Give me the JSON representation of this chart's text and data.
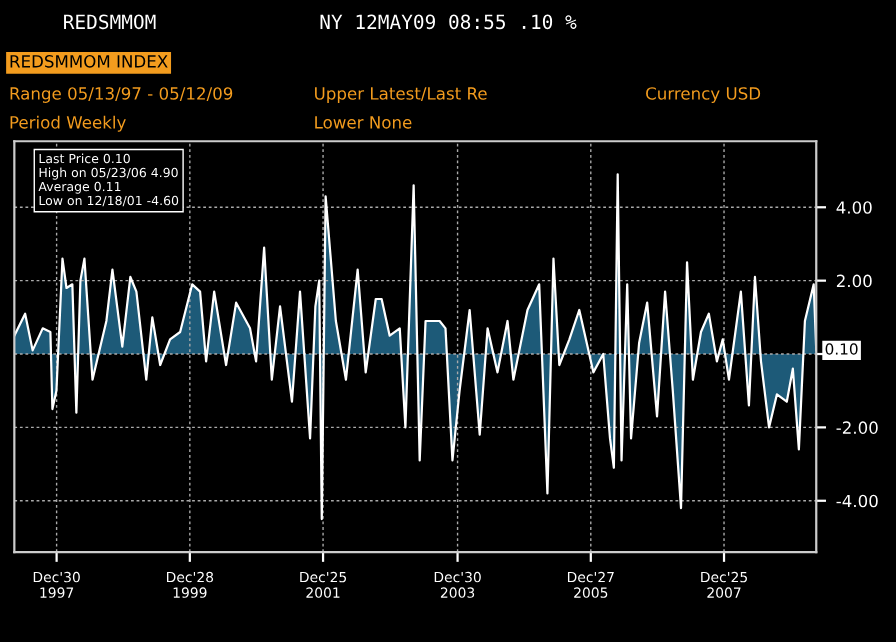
{
  "chart_data": {
    "type": "area",
    "title": "REDSMMOM",
    "subtitle": "NY 12MAY09 08:55 .10 %",
    "annotations": [
      "Last Price 0.10",
      "High on 05/23/06 4.90",
      "Average 0.11",
      "Low on 12/18/01 -4.60",
      "REDSMMOM INDEX",
      "Range 05/13/97 - 05/12/09",
      "Period Weekly",
      "Upper Latest/Last Re",
      "Lower None",
      "Currency USD",
      {
        "text": "0.10",
        "x": "2009-05-12",
        "y": 0.1
      }
    ],
    "x": [
      "1997-05-13",
      "1997-07-11",
      "1997-08-21",
      "1997-10-15",
      "1997-11-26",
      "1997-12-07",
      "1997-12-29",
      "1998-01-31",
      "1998-02-22",
      "1998-03-26",
      "1998-04-17",
      "1998-05-09",
      "1998-05-31",
      "1998-07-14",
      "1998-09-28",
      "1998-10-31",
      "1998-12-24",
      "1999-02-06",
      "1999-03-11",
      "1999-05-04",
      "1999-06-06",
      "1999-07-19",
      "1999-09-11",
      "1999-11-05",
      "2000-01-10",
      "2000-02-22",
      "2000-03-26",
      "2000-05-09",
      "2000-07-13",
      "2000-09-06",
      "2000-11-21",
      "2000-12-24",
      "2001-02-06",
      "2001-03-20",
      "2001-05-04",
      "2001-07-08",
      "2001-08-21",
      "2001-10-15",
      "2001-11-13",
      "2001-12-04",
      "2001-12-18",
      "2002-01-08",
      "2002-03-05",
      "2002-04-29",
      "2002-07-02",
      "2002-08-15",
      "2002-10-09",
      "2002-11-10",
      "2002-12-24",
      "2003-02-17",
      "2003-03-20",
      "2003-05-04",
      "2003-06-06",
      "2003-07-08",
      "2003-09-23",
      "2003-10-25",
      "2003-12-02",
      "2004-01-10",
      "2004-03-05",
      "2004-04-29",
      "2004-06-11",
      "2004-08-04",
      "2004-09-28",
      "2004-10-30",
      "2005-01-15",
      "2005-03-20",
      "2005-05-04",
      "2005-06-06",
      "2005-07-08",
      "2005-09-01",
      "2005-10-25",
      "2006-01-10",
      "2006-03-05",
      "2006-04-11",
      "2006-05-02",
      "2006-05-23",
      "2006-06-13",
      "2006-07-14",
      "2006-08-04",
      "2006-09-17",
      "2006-10-31",
      "2006-12-24",
      "2007-02-06",
      "2007-03-20",
      "2007-05-04",
      "2007-06-06",
      "2007-07-08",
      "2007-08-21",
      "2007-10-03",
      "2007-11-16",
      "2007-12-18",
      "2008-01-21",
      "2008-03-26",
      "2008-05-09",
      "2008-06-11",
      "2008-07-14",
      "2008-08-27",
      "2008-10-09",
      "2008-12-02",
      "2009-01-04",
      "2009-02-06",
      "2009-03-11",
      "2009-04-28",
      "2009-05-12"
    ],
    "series": [
      {
        "color": "#1d5a78",
        "values": [
          0.5,
          1.1,
          0.1,
          0.7,
          0.6,
          -1.5,
          -1.0,
          2.6,
          1.8,
          1.9,
          -1.6,
          2.0,
          2.6,
          -0.7,
          0.9,
          2.3,
          0.2,
          2.1,
          1.7,
          -0.7,
          1.0,
          -0.3,
          0.4,
          0.6,
          1.9,
          1.7,
          -0.2,
          1.7,
          -0.3,
          1.4,
          0.7,
          -0.2,
          2.9,
          -0.7,
          1.3,
          -1.3,
          1.7,
          -2.3,
          1.3,
          2.0,
          -4.5,
          4.3,
          0.9,
          -0.7,
          2.3,
          -0.5,
          1.5,
          1.5,
          0.5,
          0.7,
          -2.0,
          4.6,
          -2.9,
          0.9,
          0.9,
          0.7,
          -2.9,
          -1.0,
          1.2,
          -2.2,
          0.7,
          -0.5,
          0.9,
          -0.7,
          1.2,
          1.9,
          -3.8,
          2.6,
          -0.3,
          0.4,
          1.2,
          -0.5,
          0.0,
          -2.3,
          -3.1,
          4.9,
          -2.9,
          1.9,
          -2.3,
          0.3,
          1.4,
          -1.7,
          1.7,
          -1.0,
          -4.2,
          2.5,
          -0.7,
          0.6,
          1.1,
          -0.2,
          0.4,
          -0.7,
          1.7,
          -1.4,
          2.1,
          -0.2,
          -2.0,
          -1.1,
          -1.3,
          -0.4,
          -2.6,
          0.9,
          1.9,
          0.1
        ]
      }
    ],
    "ylim": [
      -5.4,
      5.8
    ],
    "yticks": [
      {
        "value": 4,
        "label": "4.00"
      },
      {
        "value": 2,
        "label": "2.00"
      },
      {
        "value": 0,
        "label": null
      },
      {
        "value": -2,
        "label": "-2.00"
      },
      {
        "value": -4,
        "label": "-4.00"
      }
    ],
    "xlim": [
      "1997-05-13",
      "2009-05-12"
    ],
    "xticks": [
      {
        "value": "1997-12-30",
        "label": "Dec'30\n1997"
      },
      {
        "value": "1999-12-28",
        "label": "Dec'28\n1999"
      },
      {
        "value": "2001-12-25",
        "label": "Dec'25\n2001"
      },
      {
        "value": "2003-12-30",
        "label": "Dec'30\n2003"
      },
      {
        "value": "2005-12-27",
        "label": "Dec'27\n2005"
      },
      {
        "value": "2007-12-25",
        "label": "Dec'25\n2007"
      }
    ],
    "grid": true,
    "legend": false
  }
}
